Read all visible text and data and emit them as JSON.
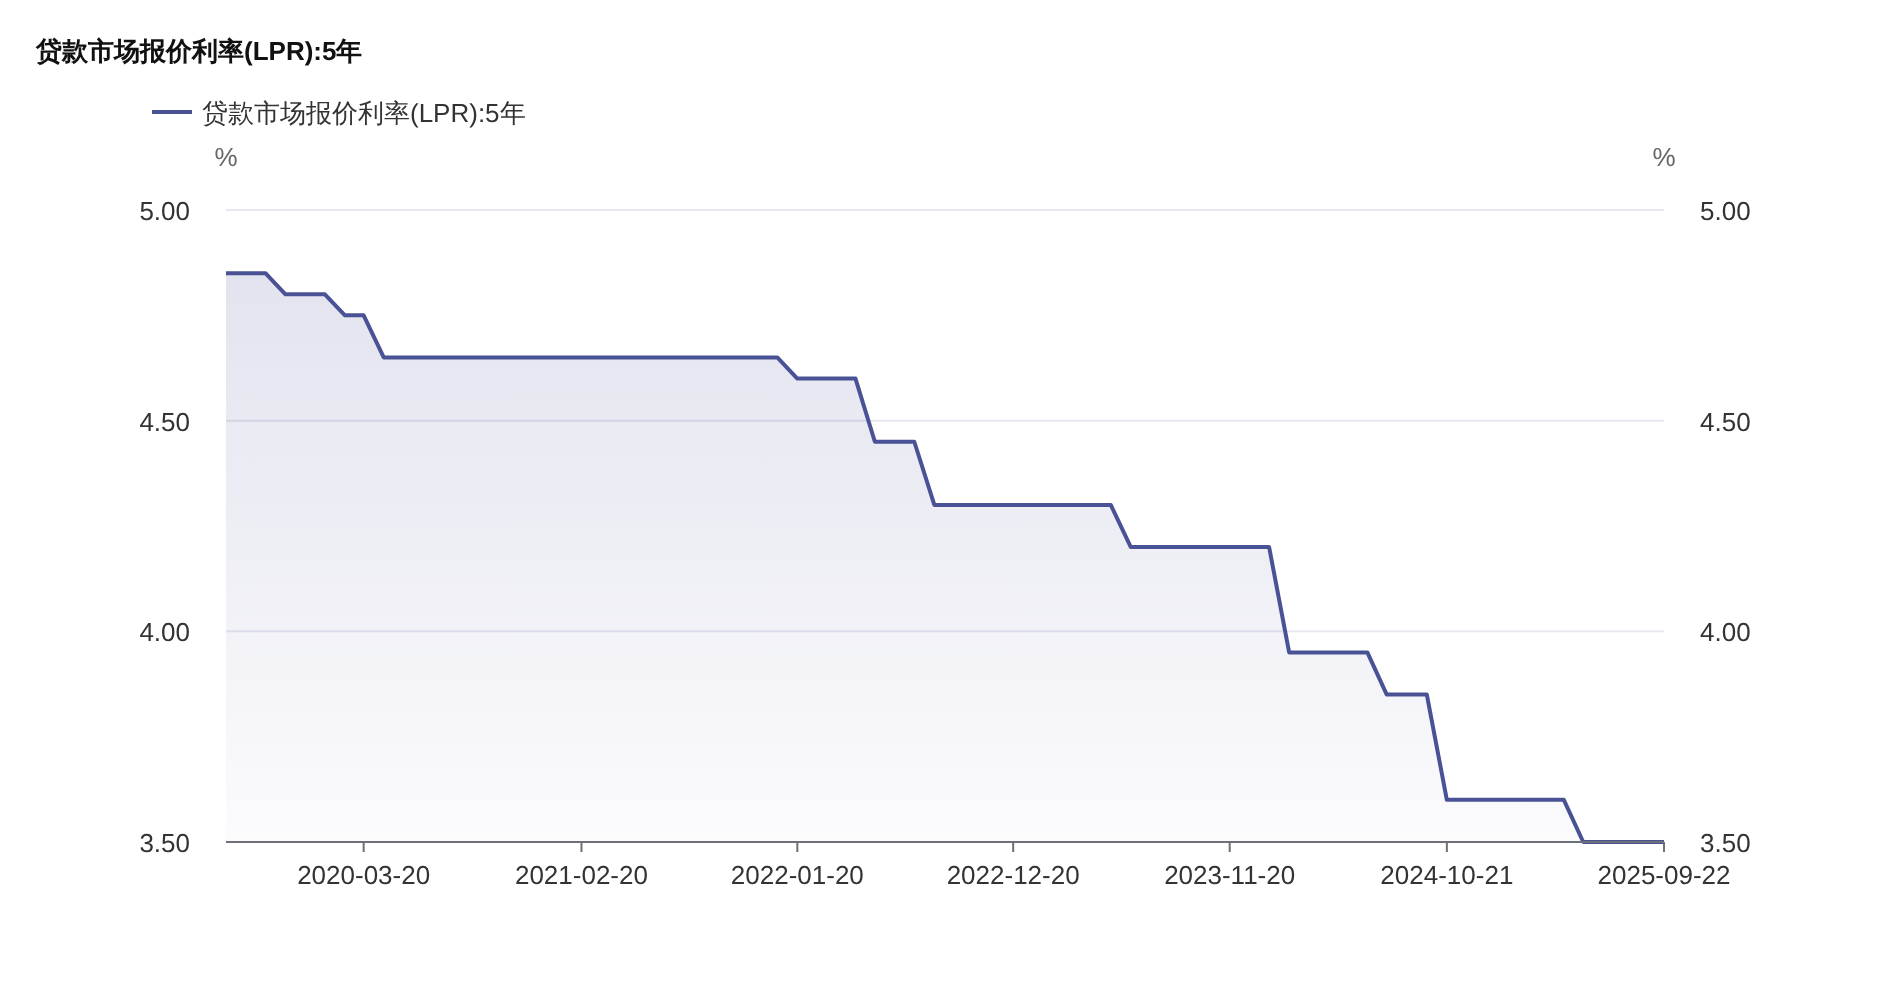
{
  "chart_data": {
    "type": "area",
    "title": "贷款市场报价利率(LPR):5年",
    "ylabel": "%",
    "y2label": "%",
    "x": [
      "2019-08-20",
      "2019-09-20",
      "2019-10-20",
      "2019-11-20",
      "2019-12-20",
      "2020-01-20",
      "2020-02-20",
      "2020-03-20",
      "2020-04-20",
      "2020-05-20",
      "2020-06-20",
      "2020-07-20",
      "2020-08-20",
      "2020-09-20",
      "2020-10-20",
      "2020-11-20",
      "2020-12-20",
      "2021-01-20",
      "2021-02-20",
      "2021-03-20",
      "2021-04-20",
      "2021-05-20",
      "2021-06-20",
      "2021-07-20",
      "2021-08-20",
      "2021-09-20",
      "2021-10-20",
      "2021-11-20",
      "2021-12-20",
      "2022-01-20",
      "2022-02-20",
      "2022-03-20",
      "2022-04-20",
      "2022-05-20",
      "2022-06-20",
      "2022-07-20",
      "2022-08-20",
      "2022-09-20",
      "2022-10-20",
      "2022-11-20",
      "2022-12-20",
      "2023-01-20",
      "2023-02-20",
      "2023-03-20",
      "2023-04-20",
      "2023-05-20",
      "2023-06-20",
      "2023-07-20",
      "2023-08-20",
      "2023-09-20",
      "2023-10-20",
      "2023-11-20",
      "2023-12-20",
      "2024-01-20",
      "2024-02-20",
      "2024-03-20",
      "2024-04-20",
      "2024-05-20",
      "2024-06-20",
      "2024-07-20",
      "2024-08-20",
      "2024-09-20",
      "2024-10-21",
      "2024-11-20",
      "2024-12-20",
      "2025-01-20",
      "2025-02-20",
      "2025-03-20",
      "2025-04-20",
      "2025-05-20",
      "2025-06-20",
      "2025-07-20",
      "2025-08-20",
      "2025-09-22"
    ],
    "series": [
      {
        "name": "贷款市场报价利率(LPR):5年",
        "color": "#4a5296",
        "values": [
          4.85,
          4.85,
          4.85,
          4.8,
          4.8,
          4.8,
          4.75,
          4.75,
          4.65,
          4.65,
          4.65,
          4.65,
          4.65,
          4.65,
          4.65,
          4.65,
          4.65,
          4.65,
          4.65,
          4.65,
          4.65,
          4.65,
          4.65,
          4.65,
          4.65,
          4.65,
          4.65,
          4.65,
          4.65,
          4.6,
          4.6,
          4.6,
          4.6,
          4.45,
          4.45,
          4.45,
          4.3,
          4.3,
          4.3,
          4.3,
          4.3,
          4.3,
          4.3,
          4.3,
          4.3,
          4.3,
          4.2,
          4.2,
          4.2,
          4.2,
          4.2,
          4.2,
          4.2,
          4.2,
          3.95,
          3.95,
          3.95,
          3.95,
          3.95,
          3.85,
          3.85,
          3.85,
          3.6,
          3.6,
          3.6,
          3.6,
          3.6,
          3.6,
          3.6,
          3.5,
          3.5,
          3.5,
          3.5,
          3.5
        ]
      }
    ],
    "xlim": [
      "2019-08-20",
      "2025-09-22"
    ],
    "xticks": [
      "2020-03-20",
      "2021-02-20",
      "2022-01-20",
      "2022-12-20",
      "2023-11-20",
      "2024-10-21",
      "2025-09-22"
    ],
    "ylim": [
      3.5,
      5.0
    ],
    "yticks": [
      {
        "value": 3.5,
        "label": "3.50"
      },
      {
        "value": 4.0,
        "label": "4.00"
      },
      {
        "value": 4.5,
        "label": "4.50"
      },
      {
        "value": 5.0,
        "label": "5.00"
      }
    ],
    "y2lim": [
      3.5,
      5.0
    ],
    "y2ticks": [
      {
        "value": 3.5,
        "label": "3.50"
      },
      {
        "value": 4.0,
        "label": "4.00"
      },
      {
        "value": 4.5,
        "label": "4.50"
      },
      {
        "value": 5.0,
        "label": "5.00"
      }
    ],
    "grid": "y",
    "legend": "top left",
    "marker": "none",
    "line_style": "solid"
  }
}
